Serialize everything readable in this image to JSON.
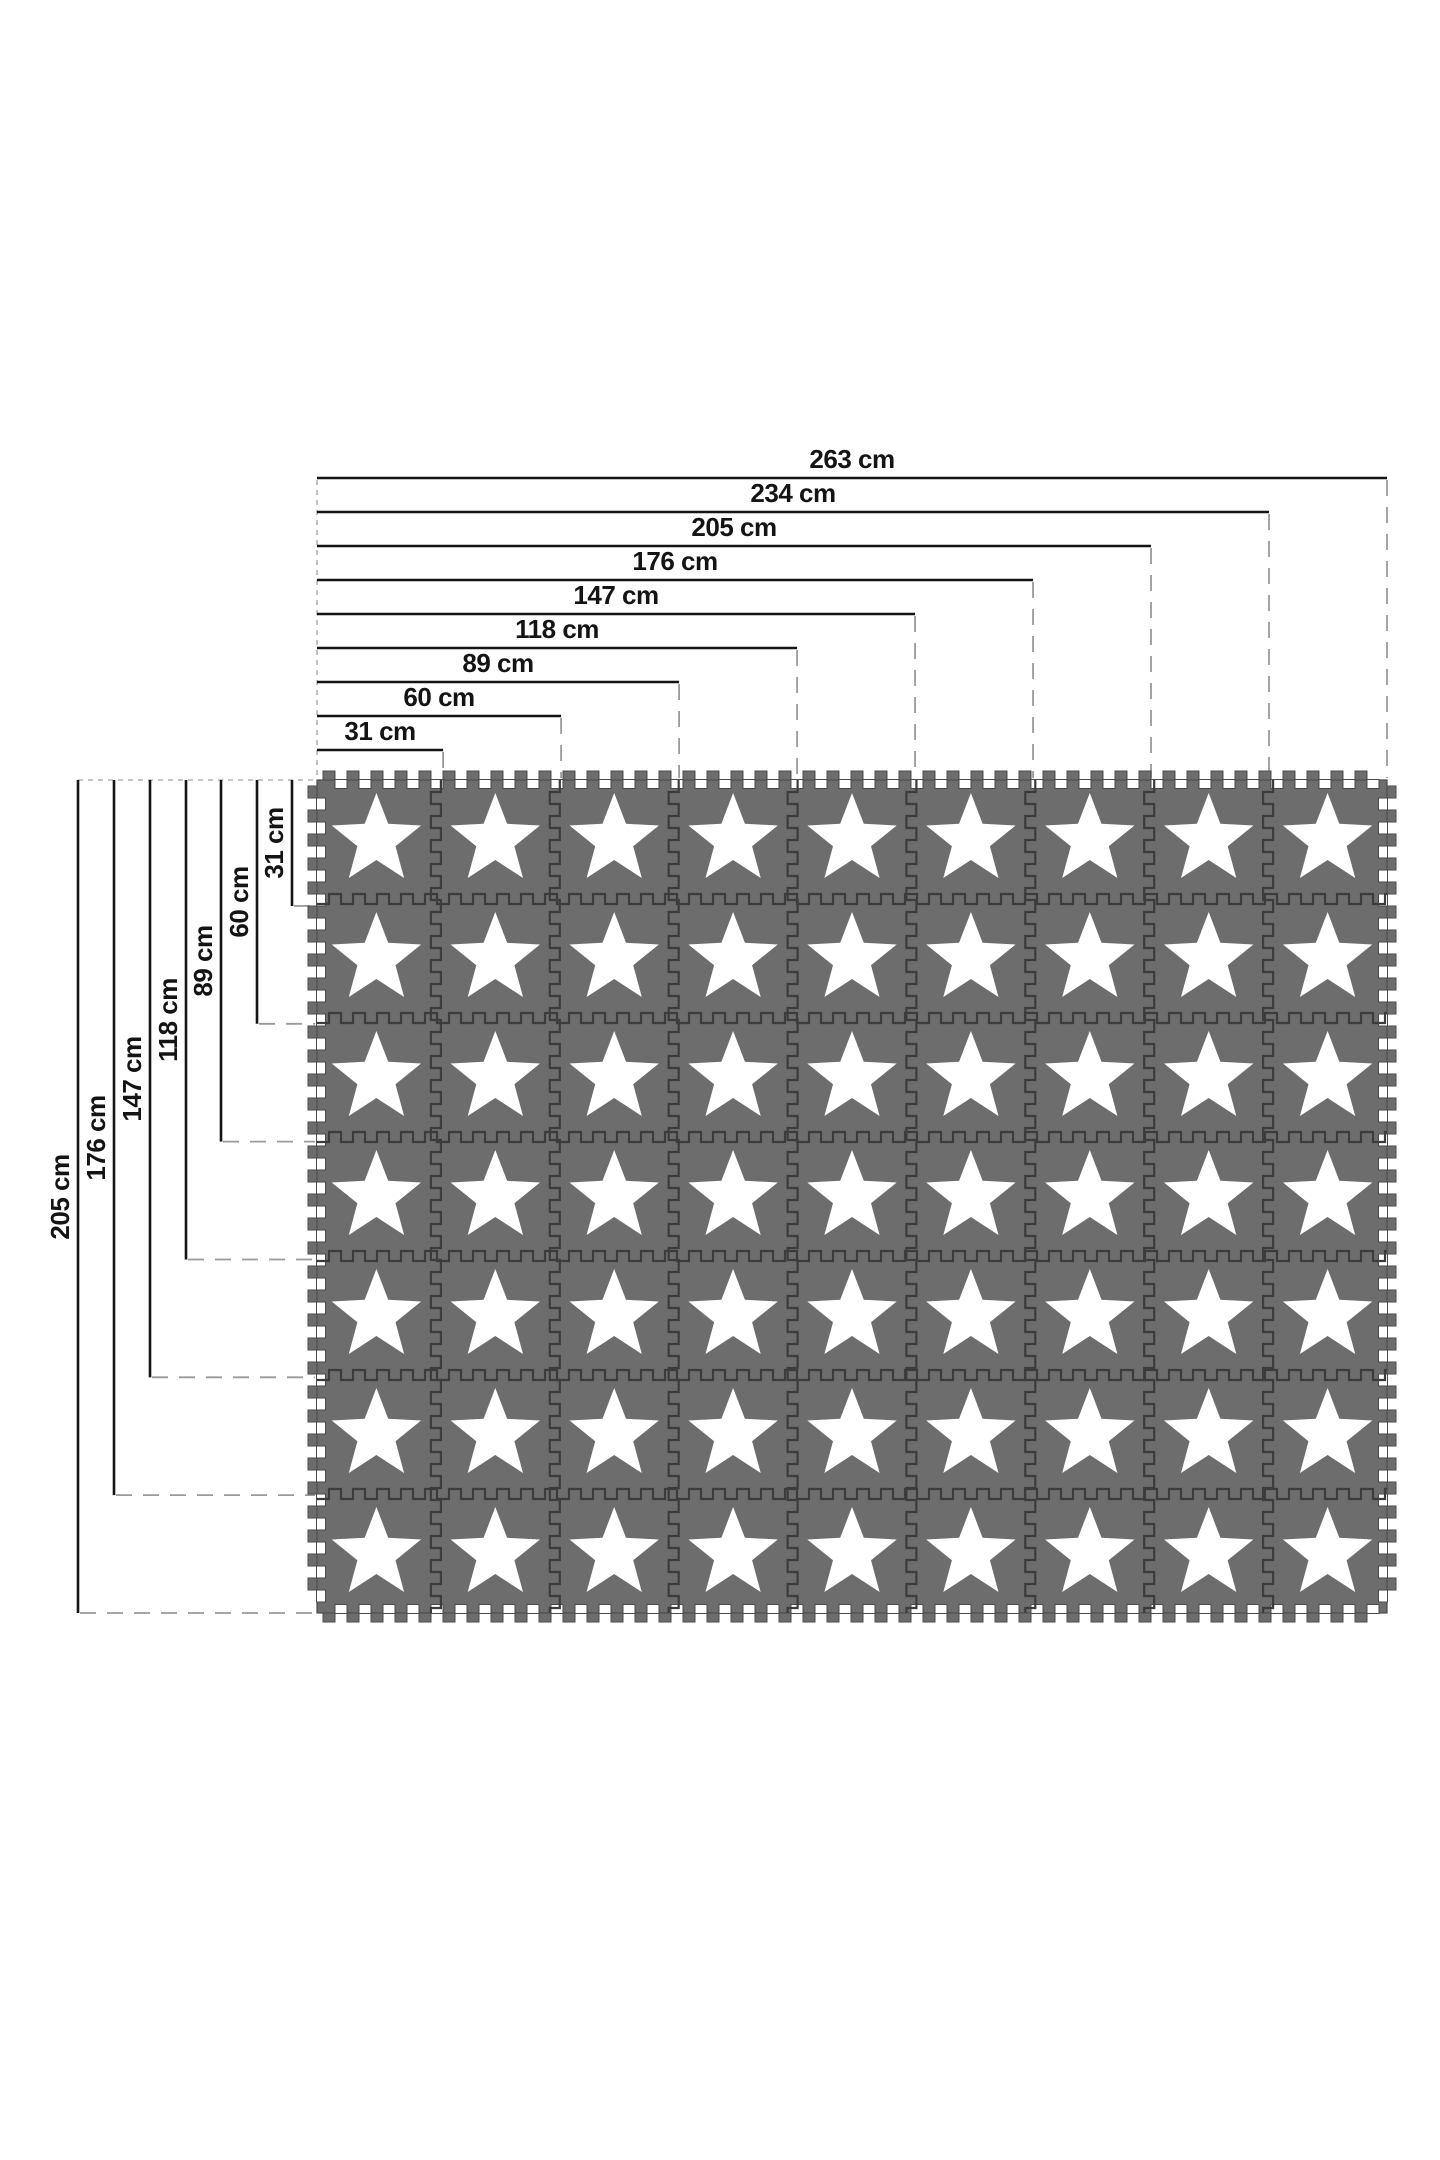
{
  "diagram": {
    "unit": "cm",
    "top_dimensions": [
      {
        "label": "263 cm",
        "value_cm": 263
      },
      {
        "label": "234 cm",
        "value_cm": 234
      },
      {
        "label": "205 cm",
        "value_cm": 205
      },
      {
        "label": "176 cm",
        "value_cm": 176
      },
      {
        "label": "147 cm",
        "value_cm": 147
      },
      {
        "label": "118 cm",
        "value_cm": 118
      },
      {
        "label": "89 cm",
        "value_cm": 89
      },
      {
        "label": "60 cm",
        "value_cm": 60
      },
      {
        "label": "31 cm",
        "value_cm": 31
      }
    ],
    "left_dimensions": [
      {
        "label": "205 cm",
        "value_cm": 205
      },
      {
        "label": "176 cm",
        "value_cm": 176
      },
      {
        "label": "147 cm",
        "value_cm": 147
      },
      {
        "label": "118 cm",
        "value_cm": 118
      },
      {
        "label": "89 cm",
        "value_cm": 89
      },
      {
        "label": "60 cm",
        "value_cm": 60
      },
      {
        "label": "31 cm",
        "value_cm": 31
      }
    ],
    "mat": {
      "rows": 7,
      "cols": 9,
      "tile_count": 63,
      "tile_motif": "five-pointed-star",
      "tile_size_label": "31 cm"
    },
    "colors": {
      "background": "#ffffff",
      "tile": "#6d6d6d",
      "seam": "#3c3c3c",
      "star": "#ffffff",
      "dimension_line": "#141414",
      "guide_dash": "#9a9a9a",
      "fine_dash": "#b3b3b3"
    }
  }
}
